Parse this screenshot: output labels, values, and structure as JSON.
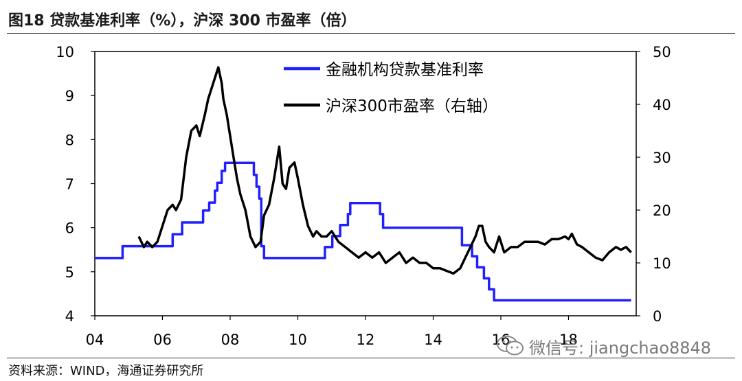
{
  "header": {
    "title": "图18 贷款基准利率（%），沪深 300 市盈率（倍）"
  },
  "footer": {
    "source": "资料来源：WIND，海通证券研究所"
  },
  "watermark": {
    "text": "微信号: jiangchao8848",
    "icon": "wechat-icon"
  },
  "chart_data": {
    "type": "line",
    "xlim": [
      2004,
      2020.0
    ],
    "xticks": [
      {
        "v": 2004,
        "label": "04"
      },
      {
        "v": 2006,
        "label": "06"
      },
      {
        "v": 2008,
        "label": "08"
      },
      {
        "v": 2010,
        "label": "10"
      },
      {
        "v": 2012,
        "label": "12"
      },
      {
        "v": 2014,
        "label": "14"
      },
      {
        "v": 2016,
        "label": "16"
      },
      {
        "v": 2018,
        "label": "18"
      }
    ],
    "ylim_left": [
      4,
      10
    ],
    "yticks_left": [
      "4",
      "5",
      "6",
      "7",
      "8",
      "9",
      "10"
    ],
    "ylim_right": [
      0,
      50
    ],
    "yticks_right": [
      "0",
      "10",
      "20",
      "30",
      "40",
      "50"
    ],
    "legend_position": "top-center",
    "series": [
      {
        "name": "金融机构贷款基准利率",
        "axis": "left",
        "color": "#1f1fff",
        "x": [
          2004.0,
          2004.82,
          2004.82,
          2006.3,
          2006.3,
          2006.58,
          2006.58,
          2007.2,
          2007.2,
          2007.38,
          2007.38,
          2007.55,
          2007.55,
          2007.62,
          2007.62,
          2007.75,
          2007.75,
          2007.85,
          2007.85,
          2007.95,
          2007.95,
          2008.7,
          2008.7,
          2008.78,
          2008.78,
          2008.86,
          2008.86,
          2008.92,
          2008.92,
          2009.0,
          2009.0,
          2010.8,
          2010.8,
          2011.02,
          2011.02,
          2011.25,
          2011.25,
          2011.48,
          2011.48,
          2011.55,
          2011.55,
          2012.43,
          2012.43,
          2012.52,
          2012.52,
          2014.85,
          2014.85,
          2015.15,
          2015.15,
          2015.3,
          2015.3,
          2015.5,
          2015.5,
          2015.65,
          2015.65,
          2015.8,
          2015.8,
          2019.85
        ],
        "y": [
          5.31,
          5.31,
          5.58,
          5.58,
          5.85,
          5.85,
          6.12,
          6.12,
          6.39,
          6.39,
          6.57,
          6.57,
          6.84,
          6.84,
          7.02,
          7.02,
          7.29,
          7.29,
          7.47,
          7.47,
          7.47,
          7.47,
          7.2,
          7.2,
          6.93,
          6.93,
          6.66,
          6.66,
          5.58,
          5.58,
          5.31,
          5.31,
          5.56,
          5.56,
          5.81,
          5.81,
          6.06,
          6.06,
          6.31,
          6.31,
          6.56,
          6.56,
          6.31,
          6.31,
          6.0,
          6.0,
          5.6,
          5.6,
          5.35,
          5.35,
          5.1,
          5.1,
          4.85,
          4.85,
          4.6,
          4.6,
          4.35,
          4.35
        ]
      },
      {
        "name": "沪深300市盈率（右轴）",
        "axis": "right",
        "color": "#000000",
        "x": [
          2005.3,
          2005.45,
          2005.55,
          2005.7,
          2005.85,
          2006.0,
          2006.15,
          2006.3,
          2006.4,
          2006.55,
          2006.7,
          2006.85,
          2007.0,
          2007.1,
          2007.25,
          2007.35,
          2007.45,
          2007.55,
          2007.65,
          2007.75,
          2007.8,
          2007.9,
          2008.0,
          2008.1,
          2008.2,
          2008.3,
          2008.45,
          2008.6,
          2008.75,
          2008.9,
          2009.0,
          2009.15,
          2009.3,
          2009.45,
          2009.55,
          2009.65,
          2009.75,
          2009.9,
          2010.0,
          2010.15,
          2010.3,
          2010.45,
          2010.55,
          2010.7,
          2010.85,
          2011.0,
          2011.2,
          2011.4,
          2011.6,
          2011.8,
          2012.0,
          2012.2,
          2012.4,
          2012.6,
          2012.8,
          2013.0,
          2013.2,
          2013.4,
          2013.6,
          2013.8,
          2014.0,
          2014.2,
          2014.4,
          2014.6,
          2014.8,
          2014.95,
          2015.1,
          2015.25,
          2015.35,
          2015.45,
          2015.55,
          2015.65,
          2015.8,
          2015.95,
          2016.1,
          2016.3,
          2016.5,
          2016.7,
          2016.9,
          2017.1,
          2017.3,
          2017.5,
          2017.7,
          2017.9,
          2018.0,
          2018.1,
          2018.25,
          2018.4,
          2018.6,
          2018.8,
          2019.0,
          2019.2,
          2019.4,
          2019.55,
          2019.7,
          2019.85
        ],
        "y": [
          15,
          13,
          14,
          13,
          14,
          17,
          20,
          21,
          20,
          22,
          30,
          35,
          36,
          34,
          38,
          41,
          43,
          45,
          47,
          44,
          41,
          38,
          34,
          30,
          26,
          23,
          20,
          15,
          13,
          14,
          19,
          21,
          26,
          32,
          25,
          24,
          28,
          29,
          26,
          21,
          17,
          15,
          16,
          15,
          15,
          16,
          14,
          13,
          12,
          11,
          12,
          11,
          12,
          10,
          11,
          12,
          10,
          11,
          10,
          10,
          9,
          9,
          8.5,
          8,
          9,
          11,
          13,
          15,
          17,
          17,
          14,
          13,
          12,
          15,
          12,
          13,
          13,
          14,
          14,
          14,
          13.5,
          14.5,
          14.5,
          15,
          14.5,
          15.5,
          13.5,
          13,
          12,
          11,
          10.5,
          12,
          13,
          12.5,
          13,
          12
        ]
      }
    ]
  }
}
